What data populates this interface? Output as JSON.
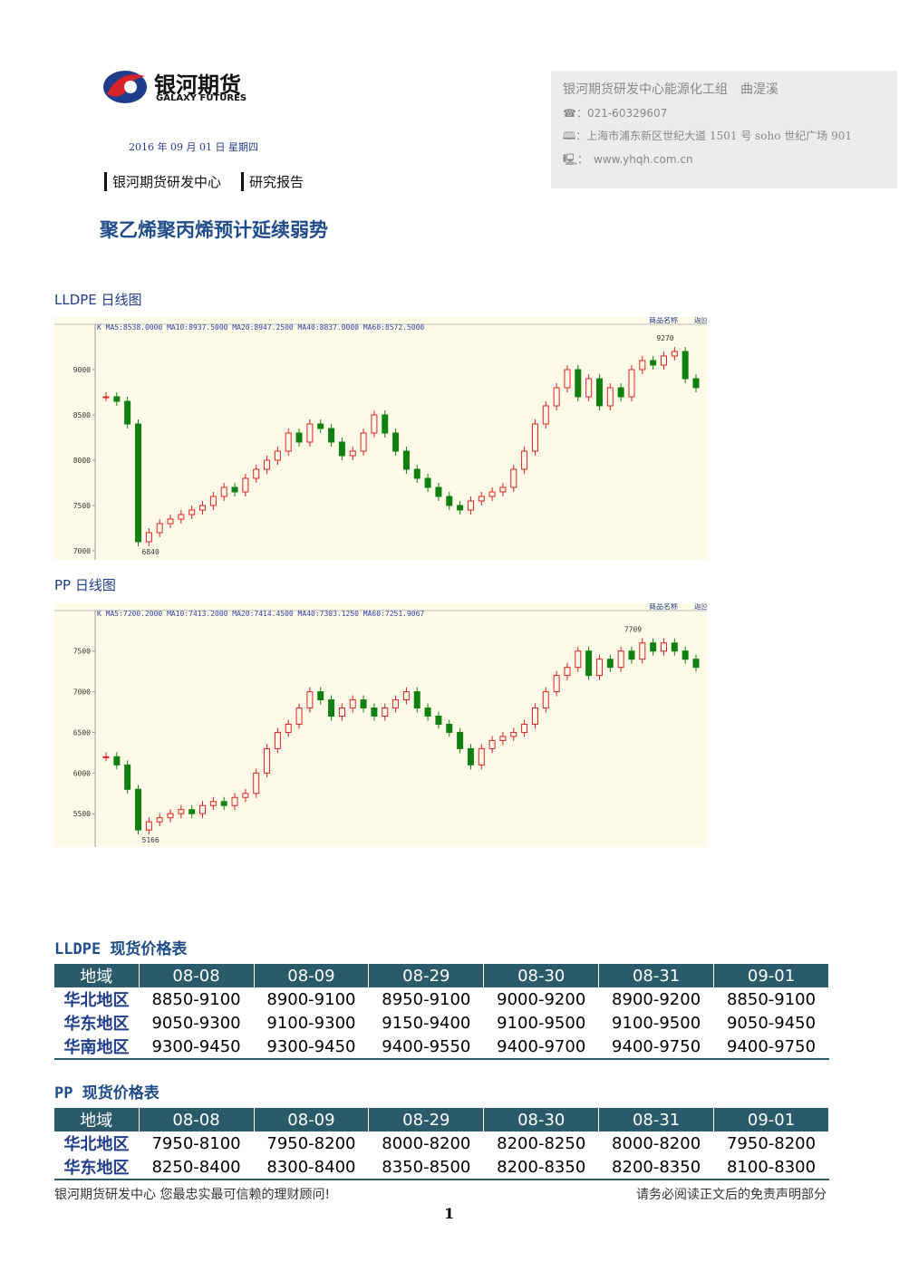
{
  "header": {
    "logo_cn": "银河期货",
    "logo_en": "GALAXY FUTURES",
    "date": "2016 年 09 月 01 日 星期四",
    "dept": "银河期货研发中心",
    "report_type": "研究报告",
    "title": "聚乙烯聚丙烯预计延续弱势"
  },
  "contact": {
    "team": "银河期货研发中心能源化工组　曲湜溪",
    "phone": "☎：021-60329607",
    "address": "🕮：上海市浦东新区世纪大道 1501 号 soho 世纪广场 901",
    "web": "🖳：　www.yhqh.com.cn"
  },
  "charts": [
    {
      "heading": "LLDPE 日线图",
      "type": "candlestick",
      "info": "K  MA5:8538.0000  MA10:8937.5000  MA20:8947.2500  MA40:8837.0000  MA60:8572.5000",
      "nav": [
        "商品名称",
        "返回"
      ],
      "high_label": "9270",
      "low_label": "6840",
      "values": [
        8700,
        8650,
        8400,
        7100,
        7200,
        7300,
        7350,
        7400,
        7450,
        7500,
        7600,
        7700,
        7650,
        7800,
        7900,
        8000,
        8100,
        8300,
        8200,
        8400,
        8350,
        8200,
        8050,
        8100,
        8300,
        8500,
        8300,
        8100,
        7900,
        7800,
        7700,
        7600,
        7500,
        7450,
        7550,
        7600,
        7650,
        7700,
        7900,
        8100,
        8400,
        8600,
        8800,
        9000,
        8700,
        8900,
        8600,
        8800,
        8700,
        9000,
        9100,
        9050,
        9150,
        9200,
        8900,
        8800
      ],
      "ylim": [
        6900,
        9430
      ],
      "yticks": [
        9000,
        8500,
        8000,
        7500,
        7000
      ]
    },
    {
      "heading": "PP 日线图",
      "type": "candlestick",
      "info": "K  MA5:7200.2000  MA10:7413.2000  MA20:7414.4500  MA40:7303.1250  MA60:7251.9067",
      "nav": [
        "商品名称",
        "返回"
      ],
      "high_label": "7709",
      "low_label": "5166",
      "values": [
        6200,
        6100,
        5800,
        5300,
        5400,
        5450,
        5500,
        5550,
        5500,
        5600,
        5650,
        5600,
        5700,
        5750,
        6000,
        6300,
        6500,
        6600,
        6800,
        7000,
        6900,
        6700,
        6800,
        6900,
        6800,
        6700,
        6800,
        6900,
        7000,
        6800,
        6700,
        6600,
        6500,
        6300,
        6100,
        6300,
        6400,
        6450,
        6500,
        6600,
        6800,
        7000,
        7200,
        7300,
        7500,
        7200,
        7400,
        7300,
        7500,
        7400,
        7600,
        7500,
        7600,
        7500,
        7400,
        7300
      ],
      "ylim": [
        5090,
        7920
      ],
      "yticks": [
        7500,
        7000,
        6500,
        6000,
        5500
      ]
    }
  ],
  "tables": [
    {
      "title": "LLDPE 现货价格表",
      "columns": [
        "地域",
        "08-08",
        "08-09",
        "08-29",
        "08-30",
        "08-31",
        "09-01"
      ],
      "rows": [
        [
          "华北地区",
          "8850-9100",
          "8900-9100",
          "8950-9100",
          "9000-9200",
          "8900-9200",
          "8850-9100"
        ],
        [
          "华东地区",
          "9050-9300",
          "9100-9300",
          "9150-9400",
          "9100-9500",
          "9100-9500",
          "9050-9450"
        ],
        [
          "华南地区",
          "9300-9450",
          "9300-9450",
          "9400-9550",
          "9400-9700",
          "9400-9750",
          "9400-9750"
        ]
      ]
    },
    {
      "title": "PP 现货价格表",
      "columns": [
        "地域",
        "08-08",
        "08-09",
        "08-29",
        "08-30",
        "08-31",
        "09-01"
      ],
      "rows": [
        [
          "华北地区",
          "7950-8100",
          "7950-8200",
          "8000-8200",
          "8200-8250",
          "8000-8200",
          "7950-8200"
        ],
        [
          "华东地区",
          "8250-8400",
          "8300-8400",
          "8350-8500",
          "8200-8350",
          "8200-8350",
          "8100-8300"
        ]
      ]
    }
  ],
  "footer": {
    "left": "银河期货研发中心  您最忠实最可信赖的理财顾问!",
    "right": "请务必阅读正文后的免责声明部分",
    "page": "1"
  }
}
